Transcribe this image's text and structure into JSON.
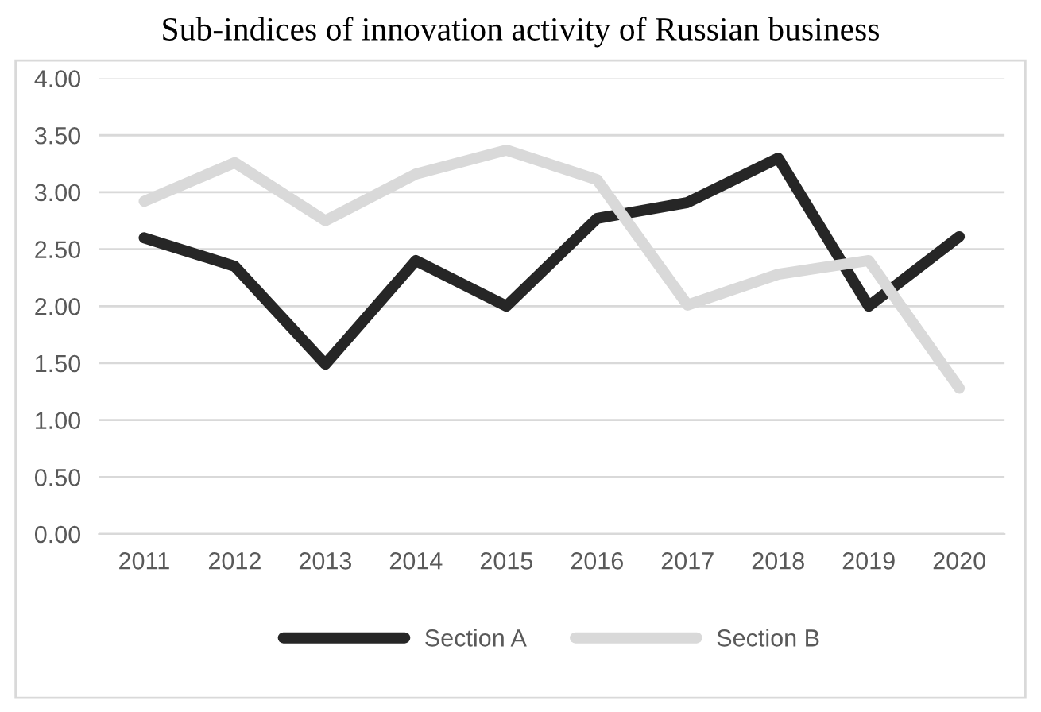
{
  "chart_data": {
    "type": "line",
    "title": "Sub-indices of innovation activity of Russian business",
    "categories": [
      "2011",
      "2012",
      "2013",
      "2014",
      "2015",
      "2016",
      "2017",
      "2018",
      "2019",
      "2020"
    ],
    "series": [
      {
        "name": "Section A",
        "color": "#262626",
        "values": [
          2.6,
          2.35,
          1.49,
          2.4,
          2.0,
          2.77,
          2.91,
          3.3,
          2.0,
          2.61
        ]
      },
      {
        "name": "Section B",
        "color": "#d9d9d9",
        "values": [
          2.92,
          3.26,
          2.75,
          3.16,
          3.37,
          3.11,
          2.01,
          2.28,
          2.4,
          1.28
        ]
      }
    ],
    "ylim": [
      0,
      4
    ],
    "yticks": [
      {
        "value": 0,
        "label": "0.00"
      },
      {
        "value": 0.5,
        "label": "0.50"
      },
      {
        "value": 1,
        "label": "1.00"
      },
      {
        "value": 1.5,
        "label": "1.50"
      },
      {
        "value": 2,
        "label": "2.00"
      },
      {
        "value": 2.5,
        "label": "2.50"
      },
      {
        "value": 3,
        "label": "3.00"
      },
      {
        "value": 3.5,
        "label": "3.50"
      },
      {
        "value": 4,
        "label": "4.00"
      }
    ],
    "grid": "y",
    "legend": "bottom",
    "marker": "none",
    "line_style": "solid"
  }
}
